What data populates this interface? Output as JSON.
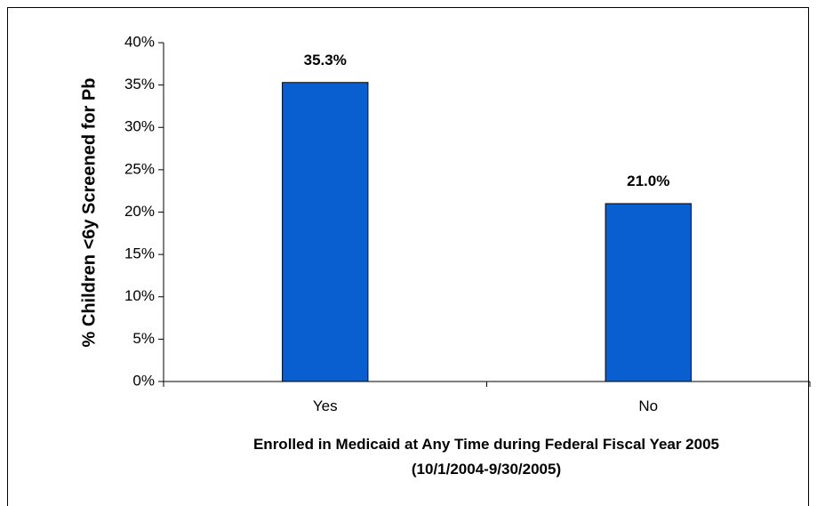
{
  "chart_data": {
    "type": "bar",
    "categories": [
      "Yes",
      "No"
    ],
    "values": [
      35.3,
      21.0
    ],
    "data_labels": [
      "35.3%",
      "21.0%"
    ],
    "ylabel": "% Children <6y Screened for Pb",
    "xlabel_line1": "Enrolled in Medicaid at Any Time during Federal Fiscal Year 2005",
    "xlabel_line2": "(10/1/2004-9/30/2005)",
    "ylim": [
      0,
      40
    ],
    "ytick_values": [
      0,
      5,
      10,
      15,
      20,
      25,
      30,
      35,
      40
    ],
    "ytick_labels": [
      "0%",
      "5%",
      "10%",
      "15%",
      "20%",
      "25%",
      "30%",
      "35%",
      "40%"
    ],
    "grid": false,
    "bar_color": "#0A5FD0",
    "bar_edge_color": "#000000"
  }
}
